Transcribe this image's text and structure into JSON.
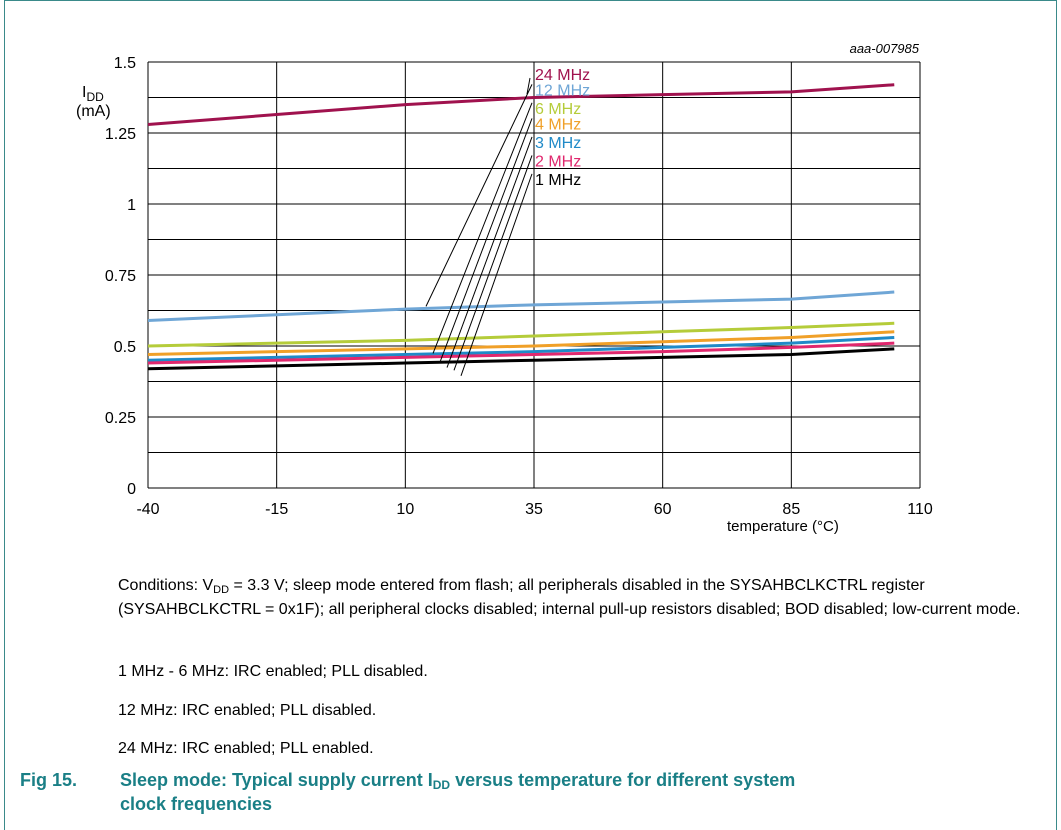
{
  "figure_id": "aaa-007985",
  "chart_data": {
    "type": "line",
    "ylabel_main": "I",
    "ylabel_sub": "DD",
    "ylabel_unit": "(mA)",
    "xlabel": "temperature (°C)",
    "xlim": [
      -40,
      110
    ],
    "ylim": [
      0,
      1.5
    ],
    "xticks": [
      "-40",
      "-15",
      "10",
      "35",
      "60",
      "85",
      "110"
    ],
    "xtick_values": [
      -40,
      -15,
      10,
      35,
      60,
      85,
      110
    ],
    "yticks": [
      "0",
      "0.25",
      "0.5",
      "0.75",
      "1",
      "1.25",
      "1.5"
    ],
    "ytick_values": [
      0,
      0.25,
      0.5,
      0.75,
      1,
      1.25,
      1.5
    ],
    "grid": true,
    "x": [
      -40,
      -15,
      10,
      35,
      60,
      85,
      105
    ],
    "series": [
      {
        "name": "24 MHz",
        "color": "#a0124e",
        "values": [
          1.28,
          1.315,
          1.35,
          1.375,
          1.385,
          1.395,
          1.42
        ],
        "label_y": 1.455
      },
      {
        "name": "12 MHz",
        "color": "#6fa6d6",
        "values": [
          0.59,
          0.61,
          0.63,
          0.645,
          0.655,
          0.665,
          0.69
        ],
        "label_y": 1.4
      },
      {
        "name": "6 MHz",
        "color": "#b5cc3a",
        "values": [
          0.5,
          0.51,
          0.52,
          0.535,
          0.55,
          0.565,
          0.58
        ],
        "label_y": 1.335
      },
      {
        "name": "4 MHz",
        "color": "#f0a028",
        "values": [
          0.47,
          0.48,
          0.49,
          0.5,
          0.515,
          0.53,
          0.55
        ],
        "label_y": 1.28
      },
      {
        "name": "3 MHz",
        "color": "#1f8ac8",
        "values": [
          0.45,
          0.46,
          0.47,
          0.48,
          0.495,
          0.51,
          0.53
        ],
        "label_y": 1.215
      },
      {
        "name": "2 MHz",
        "color": "#e0286e",
        "values": [
          0.44,
          0.45,
          0.46,
          0.47,
          0.48,
          0.495,
          0.51
        ],
        "label_y": 1.15
      },
      {
        "name": "1 MHz",
        "color": "#000000",
        "values": [
          0.42,
          0.43,
          0.44,
          0.45,
          0.46,
          0.47,
          0.49
        ],
        "label_y": 1.085
      }
    ]
  },
  "notes": {
    "conditions_prefix": "Conditions: V",
    "conditions_sub": "DD",
    "conditions_rest": " = 3.3 V; sleep mode entered from flash; all peripherals disabled in the SYSAHBCLKCTRL register (SYSAHBCLKCTRL = 0x1F); all peripheral clocks disabled; internal pull-up resistors disabled; BOD disabled; low-current mode.",
    "line1": "1 MHz - 6 MHz: IRC enabled; PLL disabled.",
    "line2": "12 MHz: IRC enabled; PLL disabled.",
    "line3": "24 MHz: IRC enabled; PLL enabled."
  },
  "caption": {
    "fig": "Fig 15.",
    "title_a": "Sleep mode: Typical supply current I",
    "title_sub": "DD",
    "title_b": " versus temperature for different system",
    "title_line2": "clock frequencies"
  }
}
